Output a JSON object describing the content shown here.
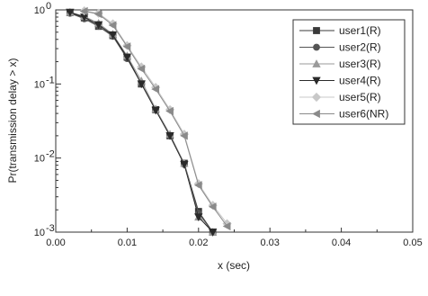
{
  "chart_data": {
    "type": "line",
    "title": "",
    "xlabel": "x (sec)",
    "ylabel": "Pr(transmission delay > x)",
    "xlim": [
      0,
      0.05
    ],
    "ylim": [
      0.001,
      1
    ],
    "yscale": "log",
    "x_tick_labels": [
      "0.00",
      "0.01",
      "0.02",
      "0.03",
      "0.04",
      "0.05"
    ],
    "y_tick_labels": [
      {
        "base": "10",
        "exp": "0"
      },
      {
        "base": "10",
        "exp": "-1"
      },
      {
        "base": "10",
        "exp": "-2"
      },
      {
        "base": "10",
        "exp": "-3"
      }
    ],
    "legend_position": "top-right",
    "grid": false,
    "series": [
      {
        "name": "user1(R)",
        "marker": "square",
        "color": "#3a3a3a",
        "x": [
          0.002,
          0.004,
          0.006,
          0.008,
          0.01,
          0.012,
          0.014,
          0.016,
          0.018,
          0.02,
          0.022
        ],
        "y": [
          0.92,
          0.78,
          0.6,
          0.45,
          0.23,
          0.1,
          0.045,
          0.02,
          0.0085,
          0.0019,
          0.001
        ]
      },
      {
        "name": "user2(R)",
        "marker": "circle",
        "color": "#555555",
        "x": [
          0.002,
          0.004,
          0.006,
          0.008,
          0.01,
          0.012,
          0.014,
          0.016,
          0.018,
          0.02,
          0.022
        ],
        "y": [
          0.9,
          0.76,
          0.6,
          0.44,
          0.22,
          0.1,
          0.045,
          0.02,
          0.0082,
          0.0018,
          0.001
        ]
      },
      {
        "name": "user3(R)",
        "marker": "triangle-up",
        "color": "#9a9a9a",
        "x": [
          0.002,
          0.004,
          0.006,
          0.008,
          0.01,
          0.012,
          0.014,
          0.016,
          0.018,
          0.02,
          0.022
        ],
        "y": [
          0.93,
          0.82,
          0.66,
          0.47,
          0.24,
          0.11,
          0.046,
          0.021,
          0.0085,
          0.0016,
          0.001
        ]
      },
      {
        "name": "user4(R)",
        "marker": "triangle-down",
        "color": "#2a2a2a",
        "x": [
          0.002,
          0.004,
          0.006,
          0.008,
          0.01,
          0.012,
          0.014,
          0.016,
          0.018,
          0.02,
          0.022
        ],
        "y": [
          0.93,
          0.8,
          0.63,
          0.46,
          0.23,
          0.1,
          0.044,
          0.02,
          0.0082,
          0.0016,
          0.001
        ]
      },
      {
        "name": "user5(R)",
        "marker": "diamond",
        "color": "#c8c8c8",
        "x": [
          0.004,
          0.006,
          0.008,
          0.01,
          0.012,
          0.014,
          0.016,
          0.018,
          0.02,
          0.022,
          0.024
        ],
        "y": [
          0.97,
          0.9,
          0.65,
          0.33,
          0.17,
          0.09,
          0.045,
          0.021,
          0.0045,
          0.0023,
          0.0013
        ]
      },
      {
        "name": "user6(NR)",
        "marker": "triangle-left",
        "color": "#8a8a8a",
        "x": [
          0.004,
          0.006,
          0.008,
          0.01,
          0.012,
          0.014,
          0.016,
          0.018,
          0.02,
          0.022,
          0.024
        ],
        "y": [
          0.96,
          0.88,
          0.62,
          0.32,
          0.16,
          0.085,
          0.043,
          0.02,
          0.0043,
          0.0022,
          0.0012
        ]
      }
    ]
  }
}
